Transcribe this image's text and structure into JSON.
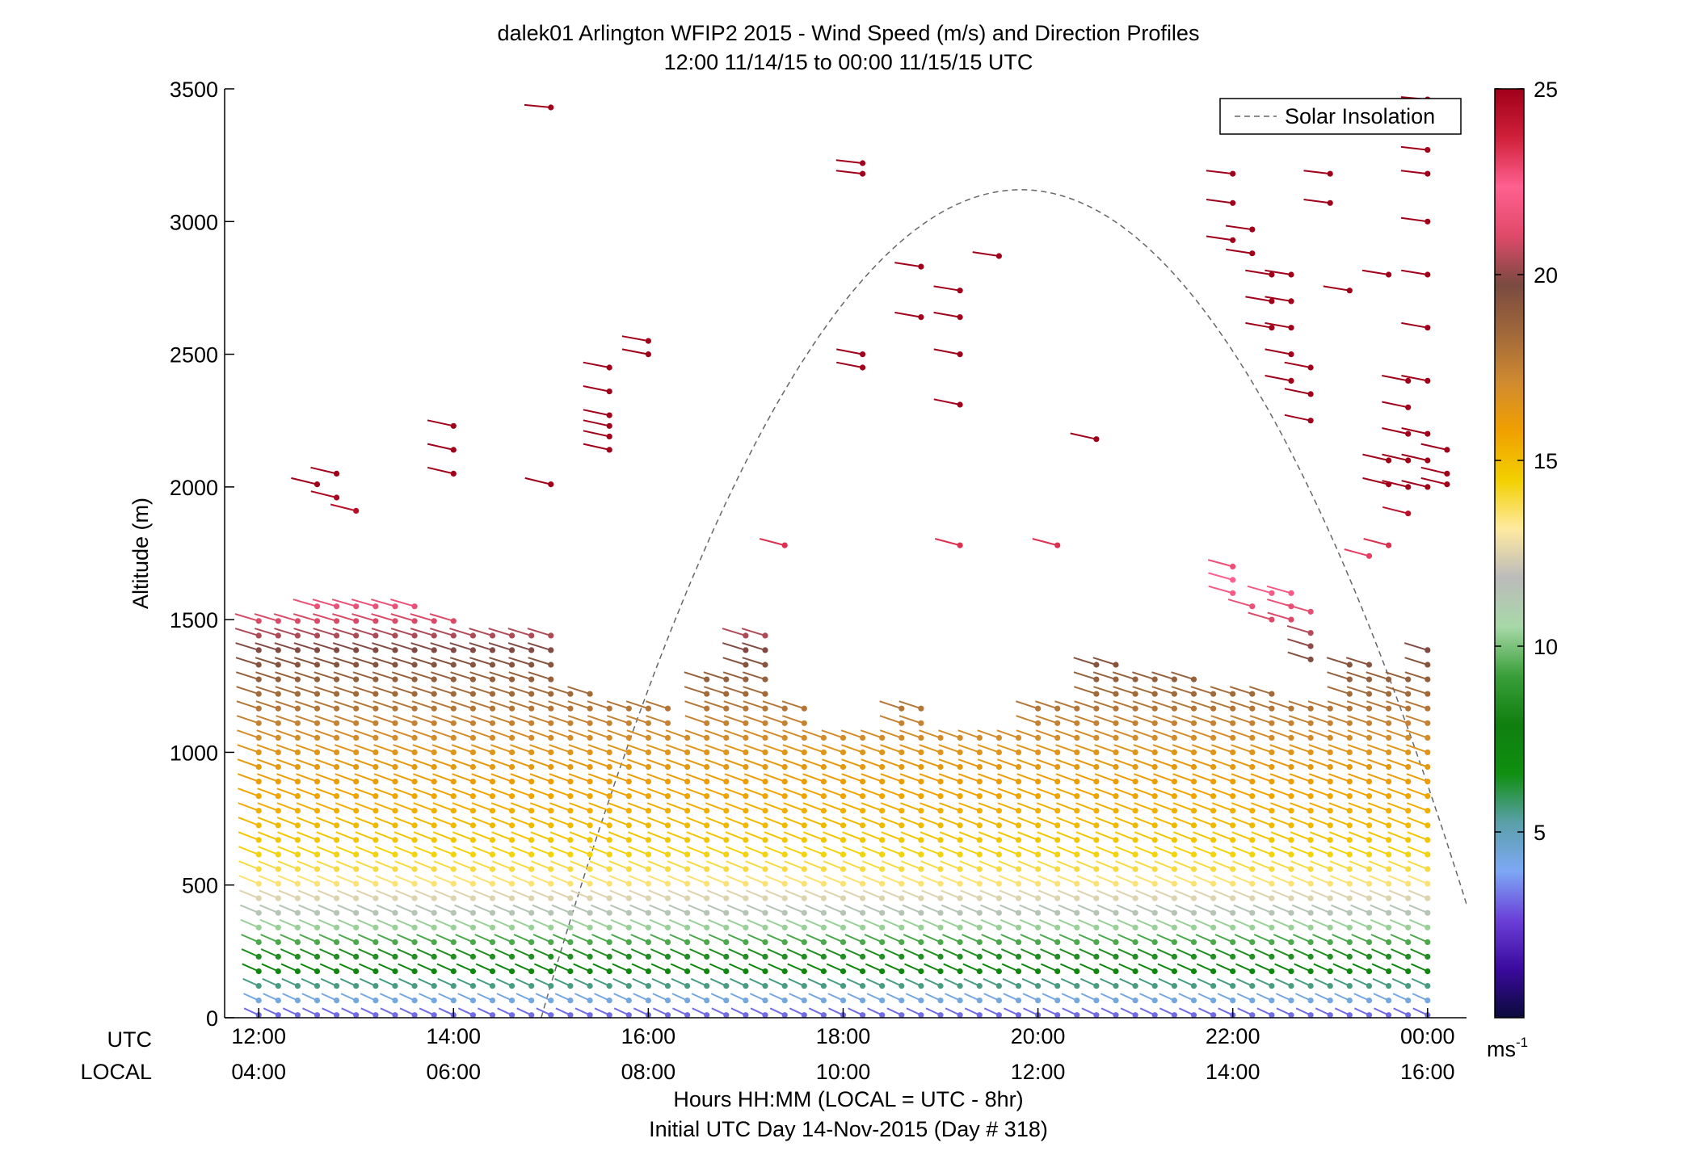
{
  "chart_data": {
    "type": "wind-barb-profile",
    "title": "dalek01 Arlington WFIP2 2015 - Wind Speed (m/s) and Direction Profiles",
    "subtitle": "12:00 11/14/15 to 00:00 11/15/15  UTC",
    "ylabel": "Altitude (m)",
    "xlabel": "Hours HH:MM  (LOCAL = UTC - 8hr)",
    "xlabel2": "Initial UTC Day 14-Nov-2015 (Day # 318)",
    "ylim": [
      0,
      3500
    ],
    "y_ticks": [
      0,
      500,
      1000,
      1500,
      2000,
      2500,
      3000,
      3500
    ],
    "x_range_utc_hours": [
      11.65,
      24.4
    ],
    "x_ticks_utc_hours": [
      12,
      14,
      16,
      18,
      20,
      22,
      24
    ],
    "utc_row_label": "UTC",
    "local_row_label": "LOCAL",
    "utc_tick_labels": [
      "12:00",
      "14:00",
      "16:00",
      "18:00",
      "20:00",
      "22:00",
      "00:00"
    ],
    "local_tick_labels": [
      "04:00",
      "06:00",
      "08:00",
      "10:00",
      "12:00",
      "14:00",
      "16:00"
    ],
    "legend": {
      "label": "Solar Insolation",
      "placement": "top-right",
      "line_color": "#666666"
    },
    "colorbar": {
      "range": [
        0,
        25
      ],
      "ticks": [
        5,
        10,
        15,
        20,
        25
      ],
      "tick_labels": [
        "5",
        "10",
        "15",
        "20",
        "25"
      ],
      "unit_label": "ms",
      "unit_exponent": "-1",
      "stops": [
        "#0a0a3a",
        "#3b0a9e",
        "#6a40d8",
        "#7ea8f5",
        "#5aa0a8",
        "#0f8f0f",
        "#0f7f0f",
        "#3a9f3a",
        "#a8d8a8",
        "#bbbbbb",
        "#ffeaa0",
        "#f2d000",
        "#f0a000",
        "#d08a30",
        "#a0683a",
        "#7a4a40",
        "#e04a6a",
        "#ff6090",
        "#d0203a",
        "#a0001a"
      ]
    },
    "solar_insolation_curve": {
      "peak_utc_hour": 19.85,
      "peak_altitude_m": 3120,
      "zero_crossing_utc_hours": [
        14.9,
        24.75
      ]
    },
    "profile_time_step_hours": 0.2,
    "boundary_layer_tops_m": [
      [
        12.0,
        1520
      ],
      [
        12.8,
        1550
      ],
      [
        13.4,
        1600
      ],
      [
        13.8,
        1500
      ],
      [
        14.2,
        1450
      ],
      [
        15.0,
        1450
      ],
      [
        15.2,
        1250
      ],
      [
        15.6,
        1200
      ],
      [
        16.0,
        1200
      ],
      [
        16.4,
        1100
      ],
      [
        16.6,
        1280
      ],
      [
        17.0,
        1450
      ],
      [
        17.4,
        1200
      ],
      [
        17.8,
        1100
      ],
      [
        18.2,
        1100
      ],
      [
        18.6,
        1200
      ],
      [
        19.0,
        1100
      ],
      [
        19.6,
        1100
      ],
      [
        20.2,
        1200
      ],
      [
        20.6,
        1350
      ],
      [
        21.0,
        1300
      ],
      [
        21.4,
        1300
      ],
      [
        21.8,
        1250
      ],
      [
        22.2,
        1250
      ],
      [
        22.8,
        1200
      ],
      [
        23.2,
        1350
      ],
      [
        23.6,
        1300
      ],
      [
        24.0,
        1400
      ]
    ],
    "wind_speed_by_altitude_m": [
      [
        0,
        3.0
      ],
      [
        100,
        5.0
      ],
      [
        200,
        8.0
      ],
      [
        350,
        10.5
      ],
      [
        500,
        13.5
      ],
      [
        700,
        15.0
      ],
      [
        1000,
        16.5
      ],
      [
        1300,
        19.0
      ],
      [
        1600,
        22.0
      ],
      [
        2000,
        25.0
      ],
      [
        3500,
        25.0
      ]
    ],
    "upper_level_points": [
      [
        12.6,
        2010
      ],
      [
        12.8,
        1960
      ],
      [
        12.8,
        2050
      ],
      [
        13.0,
        1910
      ],
      [
        14.0,
        2050
      ],
      [
        14.0,
        2140
      ],
      [
        14.0,
        2230
      ],
      [
        15.0,
        2010
      ],
      [
        15.0,
        3430
      ],
      [
        15.6,
        2140
      ],
      [
        15.6,
        2190
      ],
      [
        15.6,
        2230
      ],
      [
        15.6,
        2270
      ],
      [
        15.6,
        2360
      ],
      [
        15.6,
        2450
      ],
      [
        16.0,
        2500
      ],
      [
        16.0,
        2550
      ],
      [
        17.4,
        1780
      ],
      [
        18.2,
        2450
      ],
      [
        18.2,
        2500
      ],
      [
        18.2,
        3180
      ],
      [
        18.2,
        3220
      ],
      [
        18.8,
        2640
      ],
      [
        18.8,
        2830
      ],
      [
        19.2,
        1780
      ],
      [
        19.2,
        2310
      ],
      [
        19.2,
        2500
      ],
      [
        19.2,
        2640
      ],
      [
        19.2,
        2740
      ],
      [
        19.6,
        2870
      ],
      [
        20.2,
        1780
      ],
      [
        20.6,
        2180
      ],
      [
        22.0,
        1600
      ],
      [
        22.0,
        1650
      ],
      [
        22.0,
        1700
      ],
      [
        22.0,
        2930
      ],
      [
        22.0,
        3070
      ],
      [
        22.0,
        3180
      ],
      [
        22.2,
        2880
      ],
      [
        22.2,
        2970
      ],
      [
        22.2,
        1550
      ],
      [
        22.4,
        1500
      ],
      [
        22.4,
        1600
      ],
      [
        22.4,
        2600
      ],
      [
        22.4,
        2700
      ],
      [
        22.4,
        2800
      ],
      [
        22.6,
        2400
      ],
      [
        22.6,
        2500
      ],
      [
        22.6,
        2600
      ],
      [
        22.6,
        2700
      ],
      [
        22.6,
        2800
      ],
      [
        22.6,
        1500
      ],
      [
        22.6,
        1550
      ],
      [
        22.6,
        1600
      ],
      [
        22.8,
        2250
      ],
      [
        22.8,
        2350
      ],
      [
        22.8,
        2450
      ],
      [
        22.8,
        1350
      ],
      [
        22.8,
        1400
      ],
      [
        22.8,
        1450
      ],
      [
        22.8,
        1530
      ],
      [
        23.0,
        3070
      ],
      [
        23.0,
        3180
      ],
      [
        23.2,
        2740
      ],
      [
        23.4,
        1740
      ],
      [
        23.6,
        1780
      ],
      [
        23.6,
        2010
      ],
      [
        23.6,
        2100
      ],
      [
        23.6,
        2800
      ],
      [
        23.8,
        1900
      ],
      [
        23.8,
        2000
      ],
      [
        23.8,
        2100
      ],
      [
        23.8,
        2200
      ],
      [
        23.8,
        2300
      ],
      [
        23.8,
        2400
      ],
      [
        24.0,
        2000
      ],
      [
        24.0,
        2100
      ],
      [
        24.0,
        2200
      ],
      [
        24.0,
        2400
      ],
      [
        24.0,
        2600
      ],
      [
        24.0,
        2800
      ],
      [
        24.0,
        3000
      ],
      [
        24.0,
        3180
      ],
      [
        24.0,
        3270
      ],
      [
        24.0,
        3460
      ],
      [
        24.2,
        2010
      ],
      [
        24.2,
        2050
      ],
      [
        24.2,
        2140
      ]
    ]
  }
}
